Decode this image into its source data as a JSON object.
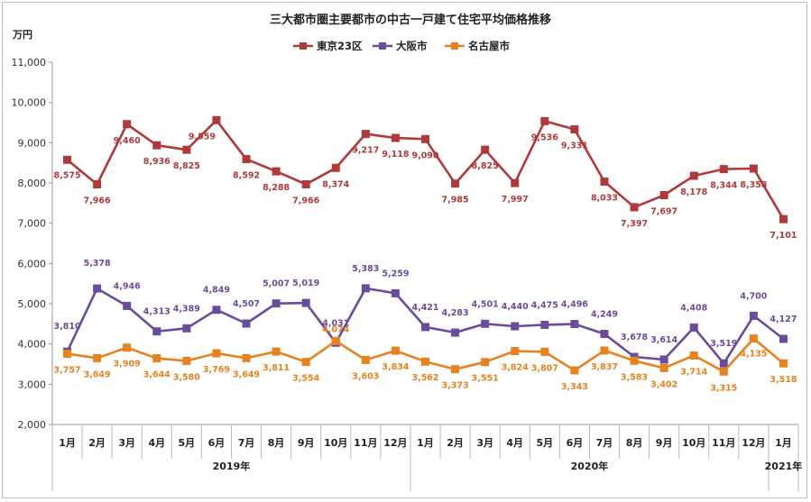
{
  "chart_data": {
    "type": "line",
    "title": "三大都市圏主要都市の中古一戸建て住宅平均価格推移",
    "ylabel": "万円",
    "ylim": [
      2000,
      11000
    ],
    "yticks": [
      "2,000",
      "3,000",
      "4,000",
      "5,000",
      "6,000",
      "7,000",
      "8,000",
      "9,000",
      "10,000",
      "11,000"
    ],
    "categories": [
      "1月",
      "2月",
      "3月",
      "4月",
      "5月",
      "6月",
      "7月",
      "8月",
      "9月",
      "10月",
      "11月",
      "12月",
      "1月",
      "2月",
      "3月",
      "4月",
      "5月",
      "6月",
      "7月",
      "8月",
      "9月",
      "10月",
      "11月",
      "12月",
      "1月"
    ],
    "year_groups": [
      {
        "label": "2019年",
        "start": 0,
        "end": 11
      },
      {
        "label": "2020年",
        "start": 12,
        "end": 23
      },
      {
        "label": "2021年",
        "start": 24,
        "end": 24
      }
    ],
    "series": [
      {
        "name": "東京23区",
        "color": "#b03a3a",
        "values": [
          8575,
          7966,
          9460,
          8936,
          8825,
          9559,
          8592,
          8288,
          7966,
          8374,
          9217,
          9118,
          9090,
          7985,
          8825,
          7997,
          9536,
          9331,
          8033,
          7397,
          7697,
          8178,
          8344,
          8358,
          7101
        ],
        "labels": [
          "8,575",
          "7,966",
          "9,460",
          "8,936",
          "8,825",
          "9,559",
          "8,592",
          "8,288",
          "7,966",
          "8,374",
          "9,217",
          "9,118",
          "9,090",
          "7,985",
          "8,825",
          "7,997",
          "9,536",
          "9,331",
          "8,033",
          "7,397",
          "7,697",
          "8,178",
          "8,344",
          "8,358",
          "7,101"
        ]
      },
      {
        "name": "大阪市",
        "color": "#6a4c9c",
        "values": [
          3810,
          5378,
          4946,
          4313,
          4389,
          4849,
          4507,
          5007,
          5019,
          4031,
          5383,
          5259,
          4421,
          4283,
          4501,
          4440,
          4475,
          4496,
          4249,
          3678,
          3614,
          4408,
          3519,
          4700,
          4127
        ],
        "labels": [
          "3,810",
          "5,378",
          "4,946",
          "4,313",
          "4,389",
          "4,849",
          "4,507",
          "5,007",
          "5,019",
          "4,031",
          "5,383",
          "5,259",
          "4,421",
          "4,283",
          "4,501",
          "4,440",
          "4,475",
          "4,496",
          "4,249",
          "3,678",
          "3,614",
          "4,408",
          "3,519",
          "4,700",
          "4,127"
        ]
      },
      {
        "name": "名古屋市",
        "color": "#e8821e",
        "values": [
          3757,
          3649,
          3909,
          3644,
          3580,
          3769,
          3649,
          3811,
          3554,
          4074,
          3603,
          3834,
          3562,
          3373,
          3551,
          3824,
          3807,
          3343,
          3837,
          3583,
          3402,
          3714,
          3315,
          4135,
          3518
        ],
        "labels": [
          "3,757",
          "3,649",
          "3,909",
          "3,644",
          "3,580",
          "3,769",
          "3,649",
          "3,811",
          "3,554",
          "4,074",
          "3,603",
          "3,834",
          "3,562",
          "3,373",
          "3,551",
          "3,824",
          "3,807",
          "3,343",
          "3,837",
          "3,583",
          "3,402",
          "3,714",
          "3,315",
          "4,135",
          "3,518"
        ]
      }
    ],
    "legend_position": "top-center",
    "grid": false
  }
}
